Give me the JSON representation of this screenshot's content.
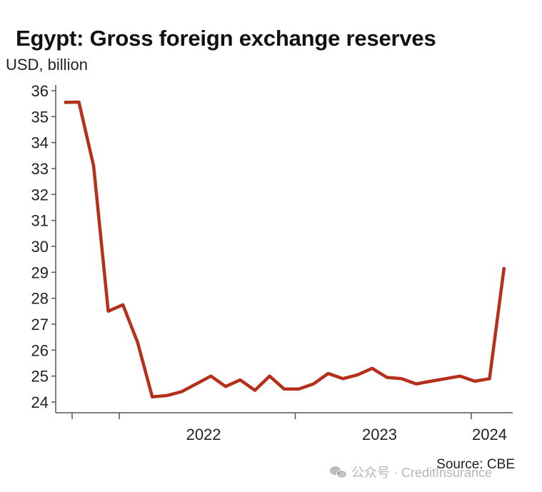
{
  "chart_data": {
    "type": "line",
    "title": "Egypt: Gross foreign exchange reserves",
    "ylabel": "USD, billion",
    "source": "Source: CBE",
    "ylim": [
      24,
      36
    ],
    "yticks": [
      24,
      25,
      26,
      27,
      28,
      29,
      30,
      31,
      32,
      33,
      34,
      35,
      36
    ],
    "xticks": [
      "2022",
      "2023",
      "2024"
    ],
    "grid": false,
    "line_color": "#b5301a",
    "series": [
      {
        "x": [
          "2021-09",
          "2021-10",
          "2021-11",
          "2021-12",
          "2022-01",
          "2022-02",
          "2022-03",
          "2022-04",
          "2022-05",
          "2022-06",
          "2022-07",
          "2022-08",
          "2022-09",
          "2022-10",
          "2022-11",
          "2022-12",
          "2023-01",
          "2023-02",
          "2023-03",
          "2023-04",
          "2023-05",
          "2023-06",
          "2023-07",
          "2023-08",
          "2023-09",
          "2023-10",
          "2023-11",
          "2023-12",
          "2024-01",
          "2024-02",
          "2024-03"
        ],
        "values": [
          35.55,
          35.56,
          33.1,
          27.5,
          27.75,
          26.3,
          24.2,
          24.25,
          24.4,
          24.7,
          25.0,
          24.6,
          24.85,
          24.45,
          25.0,
          24.5,
          24.5,
          24.7,
          25.1,
          24.9,
          25.05,
          25.3,
          24.95,
          24.9,
          24.7,
          24.8,
          24.9,
          25.0,
          24.8,
          24.9,
          29.2
        ]
      }
    ]
  },
  "watermark": "公众号 · CreditInsurance"
}
